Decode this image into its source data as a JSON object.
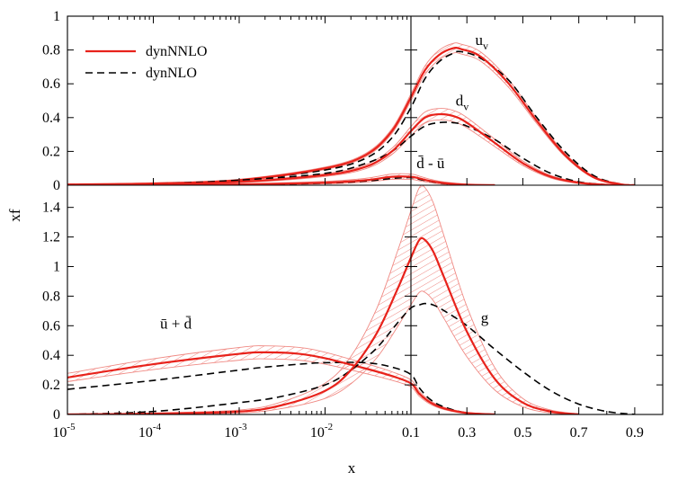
{
  "chart_data": {
    "type": "line",
    "xlabel": "x",
    "ylabel": "xf",
    "x_axis": {
      "log_part": {
        "range": [
          1e-05,
          0.1
        ],
        "ticks": [
          {
            "base": "10",
            "exp": "-5"
          },
          {
            "base": "10",
            "exp": "-4"
          },
          {
            "base": "10",
            "exp": "-3"
          },
          {
            "base": "10",
            "exp": "-2"
          }
        ]
      },
      "linear_part": {
        "range": [
          0.1,
          1.0
        ],
        "ticks": [
          "0.1",
          "0.3",
          "0.5",
          "0.7",
          "0.9"
        ]
      }
    },
    "panels": [
      {
        "id": "top",
        "ylim": [
          0,
          1
        ],
        "yticks": [
          "0",
          "0.2",
          "0.4",
          "0.6",
          "0.8",
          "1"
        ],
        "curves": [
          {
            "label": "u_v",
            "label_main": "u",
            "label_sub": "v",
            "label_at": [
              0.33,
              0.83
            ],
            "nnlo": "uv_nnlo",
            "nlo": "uv_nlo"
          },
          {
            "label": "d_v",
            "label_main": "d",
            "label_sub": "v",
            "label_at": [
              0.26,
              0.47
            ],
            "nnlo": "dv_nnlo",
            "nlo": "dv_nlo"
          },
          {
            "label": "d-bar - u-bar",
            "label_main": "d̄ - ū",
            "label_sub": "",
            "label_at": [
              0.12,
              0.1
            ],
            "nnlo": "dbmub_nnlo",
            "nlo": "dbmub_nlo"
          }
        ]
      },
      {
        "id": "bottom",
        "ylim": [
          0,
          1.55
        ],
        "yticks": [
          "0",
          "0.2",
          "0.4",
          "0.6",
          "0.8",
          "1",
          "1.2",
          "1.4"
        ],
        "curves": [
          {
            "label": "u-bar + d-bar",
            "label_main": "ū + d̄",
            "label_sub": "",
            "label_at": [
              0.00012,
              0.58
            ],
            "nnlo": "sea_nnlo",
            "nlo": "sea_nlo"
          },
          {
            "label": "g",
            "label_main": "g",
            "label_sub": "",
            "label_at": [
              0.35,
              0.62
            ],
            "nnlo": "g_nnlo",
            "nlo": "g_nlo"
          }
        ]
      }
    ],
    "legend": {
      "placement": "top-left",
      "entries": [
        {
          "label": "dynNNLO",
          "color": "#e8221b",
          "style": "solid"
        },
        {
          "label": "dynNLO",
          "color": "#000000",
          "style": "dashed"
        }
      ]
    },
    "series": {
      "uv_nnlo": {
        "x": [
          1e-05,
          0.0001,
          0.001,
          0.01,
          0.03,
          0.06,
          0.1,
          0.15,
          0.2,
          0.25,
          0.28,
          0.35,
          0.45,
          0.55,
          0.65,
          0.75,
          0.85,
          0.9
        ],
        "y": [
          0.004,
          0.01,
          0.03,
          0.1,
          0.18,
          0.32,
          0.52,
          0.68,
          0.77,
          0.81,
          0.805,
          0.76,
          0.6,
          0.38,
          0.18,
          0.05,
          0.005,
          0.0
        ],
        "band": 0.025
      },
      "uv_nlo": {
        "x": [
          1e-05,
          0.0001,
          0.001,
          0.01,
          0.03,
          0.06,
          0.1,
          0.15,
          0.2,
          0.25,
          0.28,
          0.35,
          0.45,
          0.55,
          0.65,
          0.75,
          0.85,
          0.9
        ],
        "y": [
          0.004,
          0.01,
          0.03,
          0.09,
          0.16,
          0.28,
          0.46,
          0.63,
          0.73,
          0.78,
          0.79,
          0.75,
          0.62,
          0.4,
          0.2,
          0.06,
          0.005,
          0.0
        ]
      },
      "dv_nnlo": {
        "x": [
          1e-05,
          0.0001,
          0.001,
          0.01,
          0.03,
          0.06,
          0.1,
          0.15,
          0.2,
          0.25,
          0.3,
          0.4,
          0.5,
          0.6,
          0.7,
          0.8,
          0.88
        ],
        "y": [
          0.002,
          0.008,
          0.02,
          0.06,
          0.11,
          0.2,
          0.32,
          0.4,
          0.42,
          0.41,
          0.37,
          0.25,
          0.13,
          0.05,
          0.015,
          0.002,
          0.0
        ],
        "band": 0.03
      },
      "dv_nlo": {
        "x": [
          1e-05,
          0.0001,
          0.001,
          0.01,
          0.03,
          0.06,
          0.1,
          0.15,
          0.2,
          0.25,
          0.3,
          0.4,
          0.5,
          0.6,
          0.7,
          0.8,
          0.88
        ],
        "y": [
          0.002,
          0.008,
          0.03,
          0.07,
          0.13,
          0.2,
          0.29,
          0.35,
          0.37,
          0.37,
          0.35,
          0.27,
          0.16,
          0.07,
          0.02,
          0.003,
          0.0
        ]
      },
      "dbmub_nnlo": {
        "x": [
          1e-05,
          0.0001,
          0.001,
          0.01,
          0.03,
          0.06,
          0.1,
          0.13,
          0.17,
          0.22,
          0.3,
          0.4
        ],
        "y": [
          0.0,
          0.001,
          0.004,
          0.015,
          0.03,
          0.05,
          0.05,
          0.04,
          0.025,
          0.012,
          0.003,
          0.0
        ],
        "band": 0.012
      },
      "dbmub_nlo": {
        "x": [
          1e-05,
          0.0001,
          0.001,
          0.01,
          0.03,
          0.06,
          0.1,
          0.13,
          0.17,
          0.22,
          0.3,
          0.4
        ],
        "y": [
          0.0,
          0.001,
          0.004,
          0.012,
          0.025,
          0.04,
          0.045,
          0.035,
          0.022,
          0.01,
          0.002,
          0.0
        ]
      },
      "sea_nnlo": {
        "x": [
          1e-05,
          0.0001,
          0.001,
          0.002,
          0.005,
          0.01,
          0.03,
          0.06,
          0.1,
          0.13,
          0.17,
          0.22,
          0.3,
          0.4
        ],
        "y": [
          0.25,
          0.34,
          0.41,
          0.42,
          0.41,
          0.38,
          0.31,
          0.26,
          0.21,
          0.14,
          0.08,
          0.04,
          0.01,
          0.0
        ],
        "band": 0.04
      },
      "sea_nlo": {
        "x": [
          1e-05,
          0.0001,
          0.001,
          0.002,
          0.005,
          0.01,
          0.03,
          0.06,
          0.1,
          0.13,
          0.17,
          0.22,
          0.3,
          0.4
        ],
        "y": [
          0.17,
          0.23,
          0.3,
          0.32,
          0.34,
          0.35,
          0.35,
          0.32,
          0.27,
          0.18,
          0.1,
          0.05,
          0.01,
          0.0
        ]
      },
      "g_nnlo": {
        "x": [
          1e-05,
          0.0001,
          0.001,
          0.003,
          0.01,
          0.02,
          0.04,
          0.07,
          0.1,
          0.13,
          0.15,
          0.18,
          0.22,
          0.3,
          0.4,
          0.5,
          0.6,
          0.7
        ],
        "y": [
          0.0,
          0.005,
          0.02,
          0.06,
          0.16,
          0.3,
          0.55,
          0.85,
          1.06,
          1.18,
          1.18,
          1.1,
          0.92,
          0.56,
          0.24,
          0.08,
          0.02,
          0.0
        ],
        "band": 0.35
      },
      "g_nlo": {
        "x": [
          1e-05,
          0.0001,
          0.001,
          0.003,
          0.01,
          0.02,
          0.04,
          0.07,
          0.1,
          0.13,
          0.15,
          0.18,
          0.22,
          0.3,
          0.4,
          0.5,
          0.6,
          0.7,
          0.8,
          0.9
        ],
        "y": [
          0.0,
          0.02,
          0.08,
          0.12,
          0.2,
          0.3,
          0.45,
          0.62,
          0.72,
          0.74,
          0.75,
          0.74,
          0.7,
          0.6,
          0.44,
          0.29,
          0.16,
          0.07,
          0.02,
          0.0
        ]
      }
    },
    "colors": {
      "nnlo": "#e8221b",
      "band": "#f08a84",
      "nlo": "#000000"
    }
  }
}
